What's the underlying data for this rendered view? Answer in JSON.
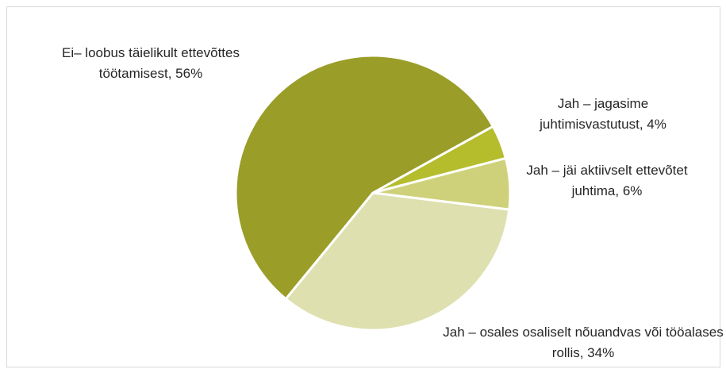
{
  "chart_data": {
    "type": "pie",
    "labels": [
      "Jah – jagasime juhtimisvastutust, 4%",
      "Jah – jäi aktiivselt ettevõtet juhtima, 6%",
      "Jah – osales osaliselt nõuandvas või tööalases rollis, 34%",
      "Ei– loobus täielikult ettevõttes töötamisest, 56%"
    ],
    "values": [
      4,
      6,
      34,
      56
    ],
    "colors": [
      "#b5bd2d",
      "#cfd17a",
      "#dfe0b0",
      "#9a9d27"
    ]
  }
}
